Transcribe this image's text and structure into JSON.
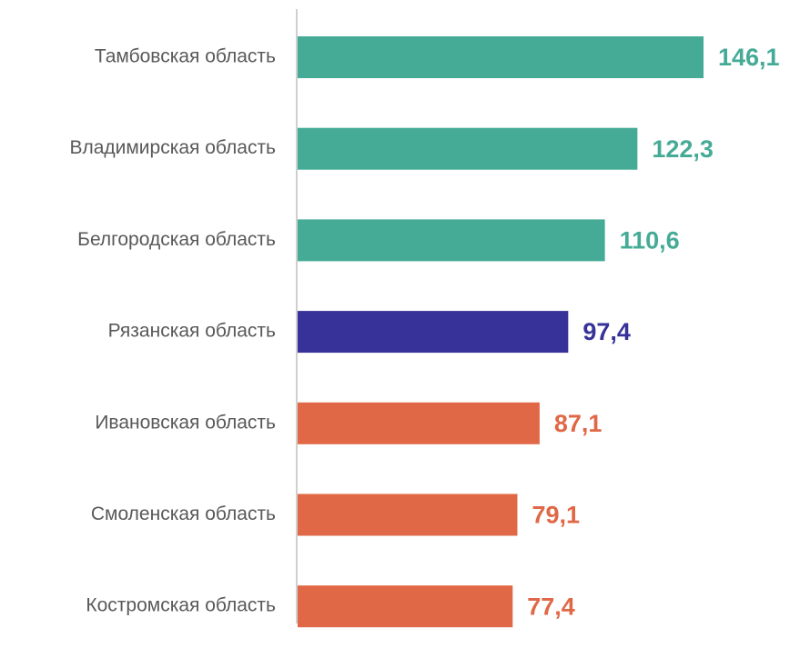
{
  "chart_data": {
    "type": "barh",
    "categories": [
      "Тамбовская область",
      "Владимирская область",
      "Белгородская область",
      "Рязанская область",
      "Ивановская область",
      "Смоленская область",
      "Костромская область"
    ],
    "values": [
      146.1,
      122.3,
      110.6,
      97.4,
      87.1,
      79.1,
      77.4
    ],
    "value_labels": [
      "146,1",
      "122,3",
      "110,6",
      "97,4",
      "87,1",
      "79,1",
      "77,4"
    ],
    "colors": [
      "#45ab96",
      "#45ab96",
      "#45ab96",
      "#363299",
      "#e06846",
      "#e06846",
      "#e06846"
    ]
  }
}
